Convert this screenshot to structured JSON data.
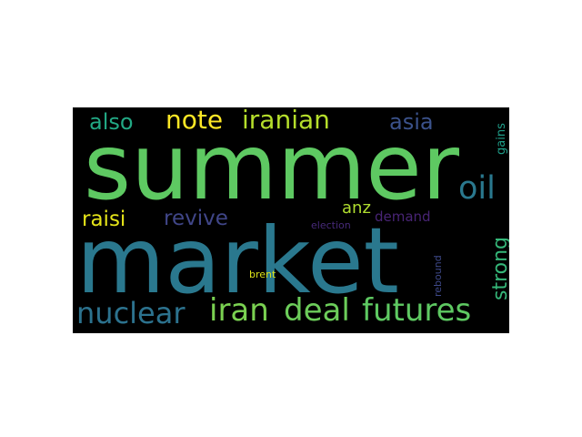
{
  "wordcloud": {
    "background": "#000000",
    "words": [
      {
        "text": "summer",
        "color": "#5ec962"
      },
      {
        "text": "market",
        "color": "#2a788e"
      },
      {
        "text": "iran",
        "color": "#7ad151"
      },
      {
        "text": "deal",
        "color": "#6ccd5a"
      },
      {
        "text": "futures",
        "color": "#5ec962"
      },
      {
        "text": "nuclear",
        "color": "#2c728e"
      },
      {
        "text": "oil",
        "color": "#2a788e"
      },
      {
        "text": "iranian",
        "color": "#b5de2b"
      },
      {
        "text": "note",
        "color": "#fde725"
      },
      {
        "text": "also",
        "color": "#22a884"
      },
      {
        "text": "asia",
        "color": "#3b528b"
      },
      {
        "text": "strong",
        "color": "#35b779"
      },
      {
        "text": "revive",
        "color": "#404688"
      },
      {
        "text": "raisi",
        "color": "#e5e419"
      },
      {
        "text": "anz",
        "color": "#b0dd2f"
      },
      {
        "text": "demand",
        "color": "#482475"
      },
      {
        "text": "gains",
        "color": "#1f9e89"
      },
      {
        "text": "rebound",
        "color": "#3e4989"
      },
      {
        "text": "election",
        "color": "#472a7a"
      },
      {
        "text": "brent",
        "color": "#dde318"
      }
    ]
  }
}
